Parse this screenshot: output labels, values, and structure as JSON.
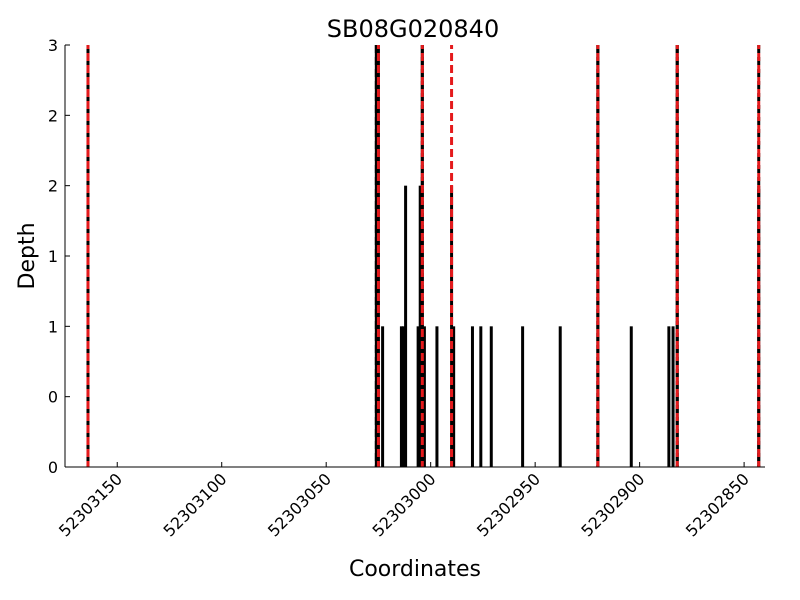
{
  "chart_data": {
    "type": "bar",
    "title": "SB08G020840",
    "xlabel": "Coordinates",
    "ylabel": "Depth",
    "x_reversed": true,
    "xlim": [
      52303175,
      52302840
    ],
    "ylim": [
      0,
      3
    ],
    "x_ticks": [
      {
        "value": 52303150,
        "label": "52303150"
      },
      {
        "value": 52303100,
        "label": "52303100"
      },
      {
        "value": 52303050,
        "label": "52303050"
      },
      {
        "value": 52303000,
        "label": "52303000"
      },
      {
        "value": 52302950,
        "label": "52302950"
      },
      {
        "value": 52302900,
        "label": "52302900"
      },
      {
        "value": 52302850,
        "label": "52302850"
      }
    ],
    "y_ticks": [
      {
        "value": 0,
        "label": "0"
      },
      {
        "value": 0.5,
        "label": "0"
      },
      {
        "value": 1,
        "label": "1"
      },
      {
        "value": 1.5,
        "label": "1"
      },
      {
        "value": 2,
        "label": "2"
      },
      {
        "value": 2.5,
        "label": "2"
      },
      {
        "value": 3,
        "label": "3"
      }
    ],
    "bars": [
      {
        "x": 52303164,
        "depth": 3
      },
      {
        "x": 52303026,
        "depth": 3
      },
      {
        "x": 52303025,
        "depth": 3
      },
      {
        "x": 52303023,
        "depth": 1
      },
      {
        "x": 52303014,
        "depth": 1
      },
      {
        "x": 52303013,
        "depth": 1
      },
      {
        "x": 52303012,
        "depth": 2
      },
      {
        "x": 52303006,
        "depth": 1
      },
      {
        "x": 52303005,
        "depth": 2
      },
      {
        "x": 52303004,
        "depth": 3
      },
      {
        "x": 52303003,
        "depth": 1
      },
      {
        "x": 52302997,
        "depth": 1
      },
      {
        "x": 52302990,
        "depth": 2
      },
      {
        "x": 52302989,
        "depth": 1
      },
      {
        "x": 52302980,
        "depth": 1
      },
      {
        "x": 52302976,
        "depth": 1
      },
      {
        "x": 52302971,
        "depth": 1
      },
      {
        "x": 52302956,
        "depth": 1
      },
      {
        "x": 52302938,
        "depth": 1
      },
      {
        "x": 52302920,
        "depth": 3
      },
      {
        "x": 52302904,
        "depth": 1
      },
      {
        "x": 52302886,
        "depth": 1
      },
      {
        "x": 52302884,
        "depth": 1
      },
      {
        "x": 52302882,
        "depth": 3
      },
      {
        "x": 52302843,
        "depth": 2
      }
    ],
    "black_dashed_lines": [
      52303164,
      52303026,
      52303004,
      52302920,
      52302882,
      52302843
    ],
    "red_dashed_lines": [
      52303164,
      52303025,
      52303004,
      52302990,
      52302920,
      52302882,
      52302843
    ],
    "colors": {
      "bar": "#000000",
      "red_dashed": "#e41a1c",
      "black_dashed": "#000000",
      "axis": "#000000"
    }
  }
}
